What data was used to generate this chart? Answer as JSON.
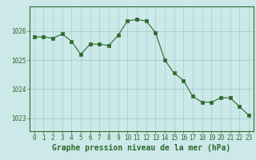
{
  "x": [
    0,
    1,
    2,
    3,
    4,
    5,
    6,
    7,
    8,
    9,
    10,
    11,
    12,
    13,
    14,
    15,
    16,
    17,
    18,
    19,
    20,
    21,
    22,
    23
  ],
  "y": [
    1025.8,
    1025.8,
    1025.75,
    1025.9,
    1025.65,
    1025.2,
    1025.55,
    1025.55,
    1025.5,
    1025.85,
    1026.35,
    1026.4,
    1026.35,
    1025.95,
    1025.0,
    1024.55,
    1024.3,
    1023.75,
    1023.55,
    1023.55,
    1023.7,
    1023.7,
    1023.4,
    1023.1
  ],
  "line_color": "#2d6a2d",
  "marker": "s",
  "marker_size": 2.5,
  "bg_color": "#cce8e8",
  "grid_color": "#99cccc",
  "xlabel": "Graphe pression niveau de la mer (hPa)",
  "xlabel_fontsize": 7,
  "ylabel_ticks": [
    1023,
    1024,
    1025,
    1026
  ],
  "xticks": [
    0,
    1,
    2,
    3,
    4,
    5,
    6,
    7,
    8,
    9,
    10,
    11,
    12,
    13,
    14,
    15,
    16,
    17,
    18,
    19,
    20,
    21,
    22,
    23
  ],
  "ylim": [
    1022.55,
    1026.85
  ],
  "xlim": [
    -0.5,
    23.5
  ],
  "tick_fontsize": 5.5,
  "tick_color": "#2d6a2d",
  "label_color": "#2d6a2d",
  "spine_color": "#2d6a2d"
}
